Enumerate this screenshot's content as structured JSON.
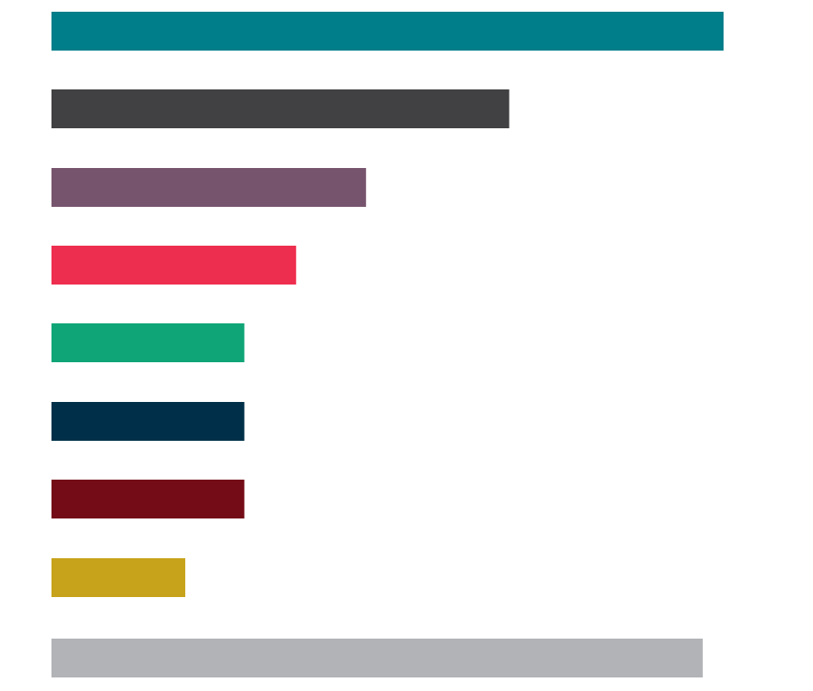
{
  "chart_data": {
    "type": "bar",
    "orientation": "horizontal",
    "title": "",
    "xlabel": "",
    "ylabel": "",
    "grid": false,
    "legend": "none",
    "xlim": [
      0,
      100
    ],
    "values": [
      100,
      68.1,
      46.8,
      36.4,
      28.7,
      28.7,
      28.7,
      19.9,
      96.9
    ],
    "colors": [
      "#007E89",
      "#414042",
      "#77546D",
      "#EE2E4F",
      "#0FA577",
      "#003049",
      "#730C17",
      "#C6A31A",
      "#B1B3B6"
    ]
  }
}
